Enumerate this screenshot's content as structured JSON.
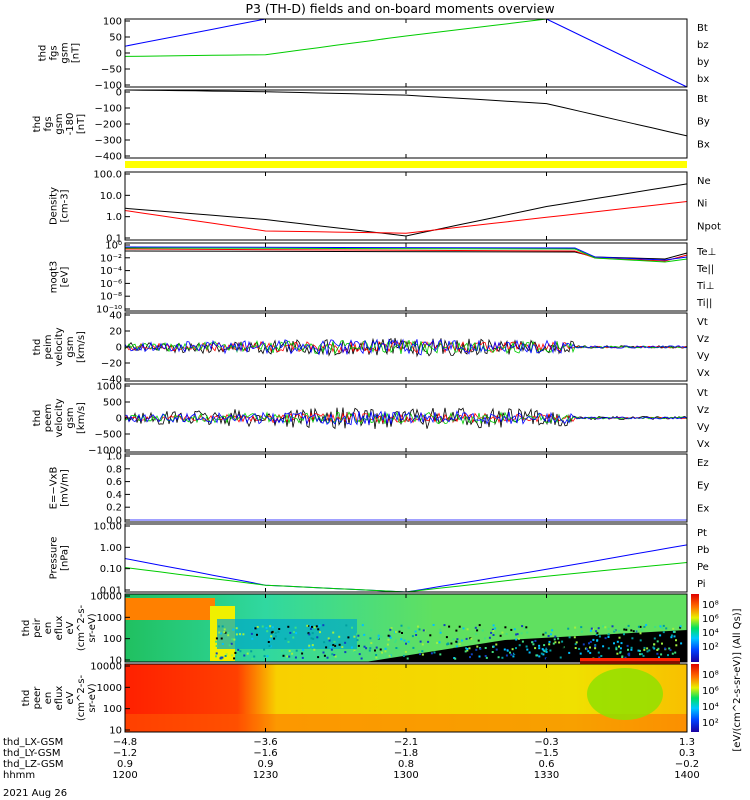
{
  "title": "P3 (TH-D) fields and on-board moments overview",
  "date": "2021 Aug 26",
  "panels": [
    {
      "ylabel": [
        "thd",
        "fgs",
        "gsm",
        "[nT]"
      ],
      "ticks": [
        "100",
        "50",
        "0",
        "−50",
        "−100"
      ],
      "legend": [
        [
          "Bt",
          "#000000"
        ],
        [
          "bz",
          "#ff0000"
        ],
        [
          "by",
          "#00cc00"
        ],
        [
          "bx",
          "#0000ff"
        ]
      ]
    },
    {
      "ylabel": [
        "thd",
        "fgs",
        "gsm",
        "-180",
        "[nT]"
      ],
      "ticks": [
        "0",
        "−100",
        "−200",
        "−300",
        "−400"
      ],
      "legend": [
        [
          "Bt",
          "#000000"
        ],
        [
          "By",
          "#00cc00"
        ],
        [
          "Bx",
          "#000000"
        ]
      ]
    },
    {
      "ylabel": [
        "Density",
        "[cm-3]"
      ],
      "ticks": [
        "100.0",
        "10.0",
        "1.0",
        "0.1"
      ],
      "legend": [
        [
          "Ne",
          "#ff0000"
        ],
        [
          "Ni",
          "#000000"
        ],
        [
          "Npot",
          "#0000ff"
        ]
      ]
    },
    {
      "ylabel": [
        "moqt3",
        "[eV]"
      ],
      "ticks": [
        "10⁰",
        "10⁻²",
        "10⁻⁴",
        "10⁻⁶",
        "10⁻⁸",
        "10⁻¹⁰"
      ],
      "legend": [
        [
          "Te⊥",
          "#ff0000"
        ],
        [
          "Te||",
          "#000000"
        ],
        [
          "Ti⊥",
          "#0000ff"
        ],
        [
          "Ti||",
          "#00cc00"
        ]
      ]
    },
    {
      "ylabel": [
        "thd",
        "peim",
        "velocity",
        "gsm",
        "[km/s]"
      ],
      "ticks": [
        "40",
        "20",
        "0",
        "−20",
        "−40"
      ],
      "legend": [
        [
          "Vt",
          "#000000"
        ],
        [
          "Vz",
          "#ff0000"
        ],
        [
          "Vy",
          "#00cc00"
        ],
        [
          "Vx",
          "#0000ff"
        ]
      ]
    },
    {
      "ylabel": [
        "thd",
        "peem",
        "velocity",
        "gsm",
        "[km/s]"
      ],
      "ticks": [
        "1000",
        "500",
        "0",
        "−500",
        "−1000"
      ],
      "legend": [
        [
          "Vt",
          "#000000"
        ],
        [
          "Vz",
          "#ff0000"
        ],
        [
          "Vy",
          "#00cc00"
        ],
        [
          "Vx",
          "#0000ff"
        ]
      ]
    },
    {
      "ylabel": [
        "E=−VxB",
        "[mV/m]"
      ],
      "ticks": [
        "1.0",
        "0.8",
        "0.6",
        "0.4",
        "0.2",
        "0.0"
      ],
      "legend": [
        [
          "Ez",
          "#ff0000"
        ],
        [
          "Ey",
          "#00cc00"
        ],
        [
          "Ex",
          "#0000ff"
        ]
      ]
    },
    {
      "ylabel": [
        "Pressure",
        "[nPa]"
      ],
      "ticks": [
        "10.00",
        "1.00",
        "0.10",
        "0.01"
      ],
      "legend": [
        [
          "Pt",
          "#000000"
        ],
        [
          "Pb",
          "#ff0000"
        ],
        [
          "Pe",
          "#00cc00"
        ],
        [
          "Pi",
          "#0000ff"
        ]
      ]
    },
    {
      "ylabel": [
        "thd",
        "peir",
        "en",
        "eflux",
        "eV",
        "(cm^2-s-",
        "sr-eV)"
      ],
      "ticks": [
        "10000",
        "1000",
        "100",
        "10"
      ]
    },
    {
      "ylabel": [
        "thd",
        "peer",
        "en",
        "eflux",
        "eV",
        "(cm^2-s-",
        "sr-eV)"
      ],
      "ticks": [
        "10000",
        "1000",
        "100",
        "10"
      ]
    }
  ],
  "colorbar": {
    "label": "[eV/(cm^2-s-sr-eV)] (All Qs)]",
    "ticks_ion": [
      "10⁸",
      "10⁶",
      "10⁴",
      "10²"
    ],
    "ticks_el": [
      "10⁸",
      "10⁶",
      "10⁴",
      "10²"
    ]
  },
  "xaxis": {
    "rows": [
      {
        "label": "thd_LX-GSM",
        "values": [
          "−4.8",
          "−3.6",
          "−2.1",
          "−0.3",
          "1.3"
        ]
      },
      {
        "label": "thd_LY-GSM",
        "values": [
          "−1.2",
          "−1.6",
          "−1.8",
          "−1.5",
          "0.3"
        ]
      },
      {
        "label": "thd_LZ-GSM",
        "values": [
          "0.9",
          "0.9",
          "0.8",
          "0.6",
          "−0.2"
        ]
      },
      {
        "label": "hhmm",
        "values": [
          "1200",
          "1230",
          "1300",
          "1330",
          "1400"
        ]
      }
    ]
  },
  "chart_data": {
    "type": "line",
    "title": "P3 (TH-D) fields and on-board moments overview",
    "x_unit": "hhmm",
    "x": [
      "1200",
      "1230",
      "1300",
      "1330",
      "1400"
    ],
    "ylims": {
      "fgs_gsm": [
        -100,
        100
      ],
      "fgs_gsm_180": [
        -400,
        0
      ],
      "density": [
        0.1,
        100
      ],
      "velocity_peim": [
        -40,
        40
      ],
      "velocity_peem": [
        -1000,
        1000
      ],
      "efield": [
        0.0,
        1.0
      ],
      "pressure": [
        0.01,
        10
      ],
      "energy": [
        10,
        10000
      ]
    },
    "series": [
      {
        "panel": "fgs_gsm",
        "name": "bx",
        "values": [
          20,
          100,
          100,
          100,
          -100
        ]
      },
      {
        "panel": "fgs_gsm",
        "name": "by",
        "values": [
          -10,
          -5,
          50,
          100,
          100
        ]
      },
      {
        "panel": "fgs_gsm_180",
        "name": "Bt",
        "values": [
          0,
          -10,
          -30,
          -80,
          -270
        ]
      },
      {
        "panel": "density",
        "name": "Ni",
        "values": [
          2.5,
          0.8,
          0.15,
          3.0,
          30
        ]
      },
      {
        "panel": "density",
        "name": "Ne",
        "values": [
          2.0,
          0.25,
          0.2,
          1.0,
          5
        ]
      },
      {
        "panel": "pressure",
        "name": "Pi",
        "values": [
          0.3,
          0.02,
          0.01,
          0.1,
          1.2
        ]
      },
      {
        "panel": "pressure",
        "name": "Pe",
        "values": [
          0.12,
          0.02,
          0.01,
          0.05,
          0.2
        ]
      }
    ]
  }
}
